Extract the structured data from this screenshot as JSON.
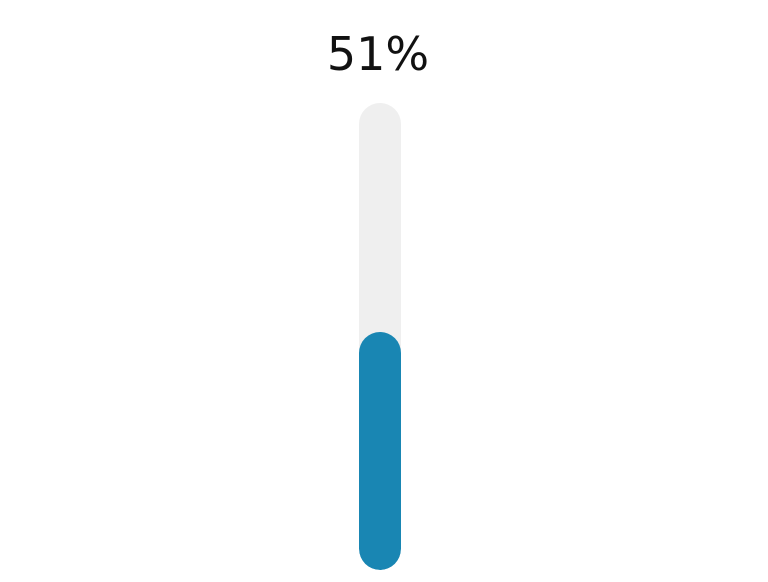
{
  "progress": {
    "label": "51%",
    "value_percent": 51
  },
  "colors": {
    "fill": "#1986b3",
    "track": "#efefef",
    "text": "#111111"
  }
}
